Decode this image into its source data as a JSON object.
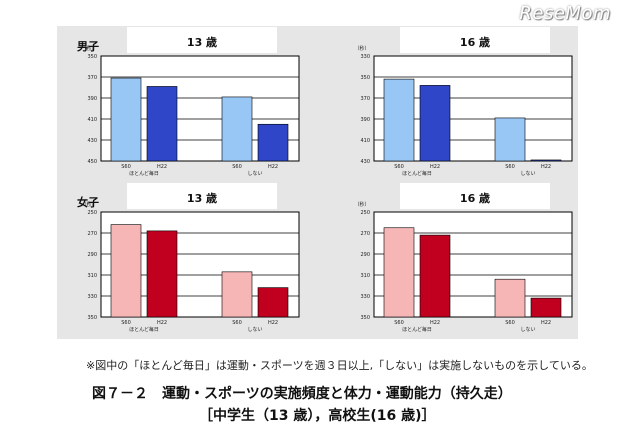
{
  "watermark": "ReseMom",
  "group_labels": {
    "boys": "男子",
    "girls": "女子"
  },
  "footnote": "※図中の「ほとんど毎日」は運動・スポーツを週３日以上,「しない」は実施しないものを示している。",
  "figure_title": "図７－２　運動・スポーツの実施頻度と体力・運動能力（持久走）",
  "figure_subtitle": "［中学生（13 歳），高校生(16 歳)］",
  "chart_data": [
    {
      "type": "bar",
      "group": "男子",
      "title": "13 歳",
      "ylabel": "（秒）",
      "inverted_y": true,
      "yticks": [
        "350",
        "370",
        "390",
        "410",
        "430",
        "450"
      ],
      "ylim": [
        350,
        450
      ],
      "categories": [
        "ほとんど毎日",
        "しない"
      ],
      "bar_labels": [
        "S60",
        "H22"
      ],
      "series": [
        {
          "values": [
            371,
            379
          ]
        },
        {
          "values": [
            389,
            415
          ]
        }
      ],
      "colors": {
        "S60": "#99c7f5",
        "H22": "#2e46c7"
      }
    },
    {
      "type": "bar",
      "group": "",
      "title": "16 歳",
      "ylabel": "（秒）",
      "inverted_y": true,
      "yticks": [
        "330",
        "350",
        "370",
        "390",
        "410",
        "430"
      ],
      "ylim": [
        330,
        430
      ],
      "categories": [
        "ほとんど毎日",
        "しない"
      ],
      "bar_labels": [
        "S60",
        "H22"
      ],
      "series": [
        {
          "values": [
            352,
            358
          ]
        },
        {
          "values": [
            389,
            429
          ]
        }
      ],
      "colors": {
        "S60": "#99c7f5",
        "H22": "#2e46c7"
      }
    },
    {
      "type": "bar",
      "group": "女子",
      "title": "13 歳",
      "ylabel": "（秒）",
      "inverted_y": true,
      "yticks": [
        "250",
        "270",
        "290",
        "310",
        "330",
        "350"
      ],
      "ylim": [
        250,
        350
      ],
      "categories": [
        "ほとんど毎日",
        "しない"
      ],
      "bar_labels": [
        "S60",
        "H22"
      ],
      "series": [
        {
          "values": [
            262,
            268
          ]
        },
        {
          "values": [
            307,
            322
          ]
        }
      ],
      "colors": {
        "S60": "#f6b6b6",
        "H22": "#c0001e"
      }
    },
    {
      "type": "bar",
      "group": "",
      "title": "16 歳",
      "ylabel": "（秒）",
      "inverted_y": true,
      "yticks": [
        "250",
        "270",
        "290",
        "310",
        "330",
        "350"
      ],
      "ylim": [
        250,
        350
      ],
      "categories": [
        "ほとんど毎日",
        "しない"
      ],
      "bar_labels": [
        "S60",
        "H22"
      ],
      "series": [
        {
          "values": [
            265,
            272
          ]
        },
        {
          "values": [
            314,
            332
          ]
        }
      ],
      "colors": {
        "S60": "#f6b6b6",
        "H22": "#c0001e"
      }
    }
  ]
}
